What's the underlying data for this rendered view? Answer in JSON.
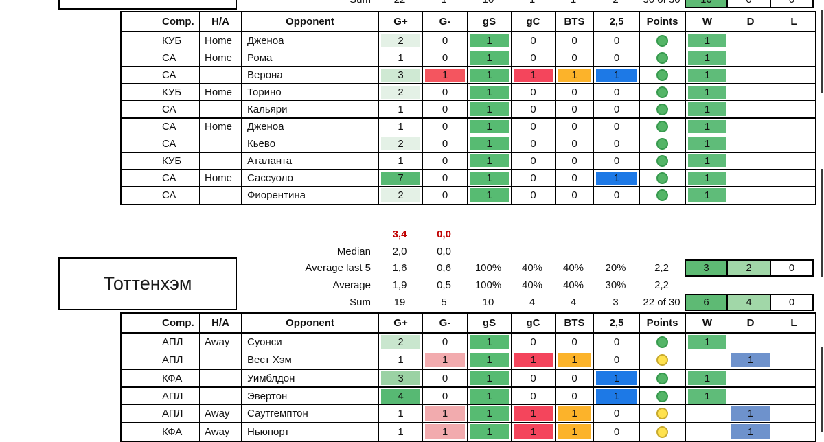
{
  "columns": [
    "",
    "Comp.",
    "H/A",
    "Opponent",
    "G+",
    "G-",
    "gS",
    "gC",
    "BTS",
    "2,5",
    "Points",
    "W",
    "D",
    "L"
  ],
  "team": {
    "name": "Тоттенхэм"
  },
  "points_colors": {
    "green": "#54b567",
    "green_border": "#379a4e",
    "yellow": "#ffe24e",
    "yellow_border": "#c8aa2e"
  },
  "accent": {
    "text_red": "#c00000",
    "formula_marker_green": "#217346",
    "grid": "#000000"
  },
  "stats": {
    "top_sum": {
      "label": "Sum",
      "vals": [
        "22",
        "1",
        "10",
        "1",
        "1",
        "2",
        "30 of 30"
      ],
      "w": [
        "10",
        "#5eba74"
      ],
      "d": [
        "0",
        null
      ],
      "l": [
        "0",
        null
      ]
    },
    "extreme": {
      "vals": [
        "3,4",
        "0,0"
      ]
    },
    "median": {
      "label": "Median",
      "vals": [
        "2,0",
        "0,0"
      ]
    },
    "avg5": {
      "label": "Average last 5",
      "vals": [
        "1,6",
        "0,6",
        "100%",
        "40%",
        "40%",
        "20%",
        "2,2"
      ],
      "w": [
        "3",
        "#5eba74"
      ],
      "d": [
        "2",
        "#a1d7a8"
      ],
      "l": [
        "0",
        null
      ]
    },
    "avg": {
      "label": "Average",
      "vals": [
        "1,9",
        "0,5",
        "100%",
        "40%",
        "40%",
        "30%",
        "2,2"
      ]
    },
    "sum": {
      "label": "Sum",
      "vals": [
        "19",
        "5",
        "10",
        "4",
        "4",
        "3",
        "22 of 30"
      ],
      "w": [
        "6",
        "#5eba74"
      ],
      "d": [
        "4",
        "#a1d7a8"
      ],
      "l": [
        "0",
        null
      ],
      "formula_marker": true
    }
  },
  "table1": {
    "rows": [
      {
        "comp": "КУБ",
        "ha": "Home",
        "opp": "Дженоа",
        "vals": [
          [
            "2",
            "#e4f1e6"
          ],
          [
            "0",
            null
          ],
          [
            "1",
            "#57bb72"
          ],
          [
            "0",
            null
          ],
          [
            "0",
            null
          ],
          [
            "0",
            null
          ]
        ],
        "points": "green",
        "w": [
          "1",
          "#5fbc79"
        ],
        "d": null,
        "l": null,
        "thick_top": false
      },
      {
        "comp": "СА",
        "ha": "Home",
        "opp": "Рома",
        "vals": [
          [
            "1",
            null
          ],
          [
            "0",
            null
          ],
          [
            "1",
            "#57bb72"
          ],
          [
            "0",
            null
          ],
          [
            "0",
            null
          ],
          [
            "0",
            null
          ]
        ],
        "points": "green",
        "w": [
          "1",
          "#5fbc79"
        ],
        "d": null,
        "l": null,
        "thick_top": false
      },
      {
        "comp": "СА",
        "ha": "",
        "opp": "Верона",
        "vals": [
          [
            "3",
            "#cfe9d3"
          ],
          [
            "1",
            "#f4555f"
          ],
          [
            "1",
            "#57bb72"
          ],
          [
            "1",
            "#f4455c"
          ],
          [
            "1",
            "#fcb32a"
          ],
          [
            "1",
            "#1d79e6"
          ]
        ],
        "points": "green",
        "w": [
          "1",
          "#5fbc79"
        ],
        "d": null,
        "l": null,
        "thick_top": true
      },
      {
        "comp": "КУБ",
        "ha": "Home",
        "opp": "Торино",
        "vals": [
          [
            "2",
            "#e4f1e6"
          ],
          [
            "0",
            null
          ],
          [
            "1",
            "#57bb72"
          ],
          [
            "0",
            null
          ],
          [
            "0",
            null
          ],
          [
            "0",
            null
          ]
        ],
        "points": "green",
        "w": [
          "1",
          "#5fbc79"
        ],
        "d": null,
        "l": null,
        "thick_top": true
      },
      {
        "comp": "СА",
        "ha": "",
        "opp": "Кальяри",
        "vals": [
          [
            "1",
            null
          ],
          [
            "0",
            null
          ],
          [
            "1",
            "#57bb72"
          ],
          [
            "0",
            null
          ],
          [
            "0",
            null
          ],
          [
            "0",
            null
          ]
        ],
        "points": "green",
        "w": [
          "1",
          "#5fbc79"
        ],
        "d": null,
        "l": null,
        "thick_top": false
      },
      {
        "comp": "СА",
        "ha": "Home",
        "opp": "Дженоа",
        "vals": [
          [
            "1",
            null
          ],
          [
            "0",
            null
          ],
          [
            "1",
            "#57bb72"
          ],
          [
            "0",
            null
          ],
          [
            "0",
            null
          ],
          [
            "0",
            null
          ]
        ],
        "points": "green",
        "w": [
          "1",
          "#5fbc79"
        ],
        "d": null,
        "l": null,
        "thick_top": true
      },
      {
        "comp": "СА",
        "ha": "",
        "opp": "Кьево",
        "vals": [
          [
            "2",
            "#e4f1e6"
          ],
          [
            "0",
            null
          ],
          [
            "1",
            "#57bb72"
          ],
          [
            "0",
            null
          ],
          [
            "0",
            null
          ],
          [
            "0",
            null
          ]
        ],
        "points": "green",
        "w": [
          "1",
          "#5fbc79"
        ],
        "d": null,
        "l": null,
        "thick_top": false
      },
      {
        "comp": "КУБ",
        "ha": "",
        "opp": "Аталанта",
        "vals": [
          [
            "1",
            null
          ],
          [
            "0",
            null
          ],
          [
            "1",
            "#57bb72"
          ],
          [
            "0",
            null
          ],
          [
            "0",
            null
          ],
          [
            "0",
            null
          ]
        ],
        "points": "green",
        "w": [
          "1",
          "#5fbc79"
        ],
        "d": null,
        "l": null,
        "thick_top": true
      },
      {
        "comp": "СА",
        "ha": "Home",
        "opp": "Сассуоло",
        "vals": [
          [
            "7",
            "#57b973"
          ],
          [
            "0",
            null
          ],
          [
            "1",
            "#57bb72"
          ],
          [
            "0",
            null
          ],
          [
            "0",
            null
          ],
          [
            "1",
            "#1d79e6"
          ]
        ],
        "points": "green",
        "w": [
          "1",
          "#5fbc79"
        ],
        "d": null,
        "l": null,
        "thick_top": true
      },
      {
        "comp": "СА",
        "ha": "",
        "opp": "Фиорентина",
        "vals": [
          [
            "2",
            "#e4f1e6"
          ],
          [
            "0",
            null
          ],
          [
            "1",
            "#57bb72"
          ],
          [
            "0",
            null
          ],
          [
            "0",
            null
          ],
          [
            "0",
            null
          ]
        ],
        "points": "green",
        "w": [
          "1",
          "#5fbc79"
        ],
        "d": null,
        "l": null,
        "thick_top": false
      }
    ]
  },
  "table2a": {
    "rows": [
      {
        "comp": "АПЛ",
        "ha": "Away",
        "opp": "Суонси",
        "vals": [
          [
            "2",
            "#c9e6ce"
          ],
          [
            "0",
            null
          ],
          [
            "1",
            "#57bb72"
          ],
          [
            "0",
            null
          ],
          [
            "0",
            null
          ],
          [
            "0",
            null
          ]
        ],
        "points": "green",
        "w": [
          "1",
          "#5fbc79"
        ],
        "d": null,
        "l": null,
        "thick_top": false
      },
      {
        "comp": "АПЛ",
        "ha": "",
        "opp": "Вест Хэм",
        "vals": [
          [
            "1",
            null
          ],
          [
            "1",
            "#f2abae"
          ],
          [
            "1",
            "#57bb72"
          ],
          [
            "1",
            "#f4455c"
          ],
          [
            "1",
            "#fcb32a"
          ],
          [
            "0",
            null
          ]
        ],
        "points": "yellow",
        "w": null,
        "d": [
          "1",
          "#6e92cc"
        ],
        "l": null,
        "thick_top": false
      },
      {
        "comp": "КФА",
        "ha": "",
        "opp": "Уимблдон",
        "vals": [
          [
            "3",
            "#9bd2a4"
          ],
          [
            "0",
            null
          ],
          [
            "1",
            "#57bb72"
          ],
          [
            "0",
            null
          ],
          [
            "0",
            null
          ],
          [
            "1",
            "#1d79e6"
          ]
        ],
        "points": "green",
        "w": [
          "1",
          "#5fbc79"
        ],
        "d": null,
        "l": null,
        "thick_top": true
      },
      {
        "comp": "АПЛ",
        "ha": "",
        "opp": "Эвертон",
        "vals": [
          [
            "4",
            "#57b973"
          ],
          [
            "0",
            null
          ],
          [
            "1",
            "#57bb72"
          ],
          [
            "0",
            null
          ],
          [
            "0",
            null
          ],
          [
            "1",
            "#1d79e6"
          ]
        ],
        "points": "green",
        "w": [
          "1",
          "#5fbc79"
        ],
        "d": null,
        "l": null,
        "thick_top": true
      }
    ]
  },
  "table2b": {
    "rows": [
      {
        "comp": "АПЛ",
        "ha": "Away",
        "opp": "Саутгемптон",
        "vals": [
          [
            "1",
            null
          ],
          [
            "1",
            "#f2abae"
          ],
          [
            "1",
            "#57bb72"
          ],
          [
            "1",
            "#f4455c"
          ],
          [
            "1",
            "#fcb32a"
          ],
          [
            "0",
            null
          ]
        ],
        "points": "yellow",
        "w": null,
        "d": [
          "1",
          "#6e92cc"
        ],
        "l": null,
        "thick_top": false
      },
      {
        "comp": "КФА",
        "ha": "Away",
        "opp": "Ньюпорт",
        "vals": [
          [
            "1",
            null
          ],
          [
            "1",
            "#f2abae"
          ],
          [
            "1",
            "#57bb72"
          ],
          [
            "1",
            "#f4455c"
          ],
          [
            "1",
            "#fcb32a"
          ],
          [
            "0",
            null
          ]
        ],
        "points": "yellow",
        "w": null,
        "d": [
          "1",
          "#6e92cc"
        ],
        "l": null,
        "thick_top": false
      }
    ]
  }
}
